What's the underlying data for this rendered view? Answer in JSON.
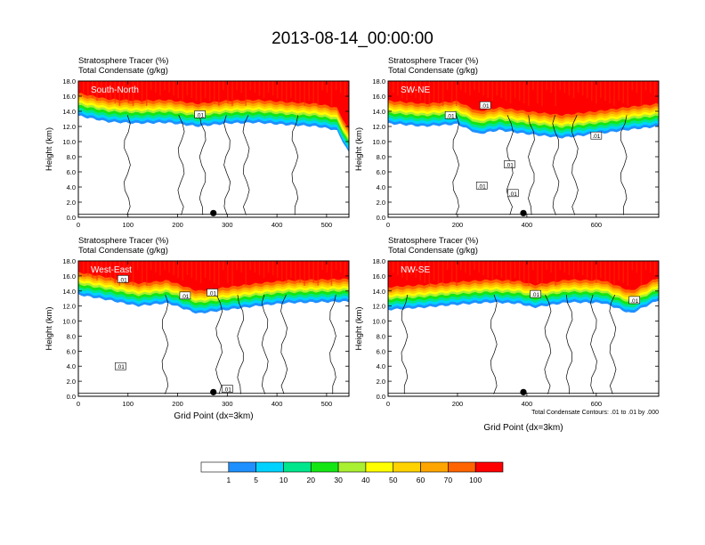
{
  "figure": {
    "title": "2013-08-14_00:00:00",
    "footnote": "Total Condensate Contours: .01 to .01 by .000"
  },
  "chart_data": {
    "type": "heatmap",
    "shared": {
      "header_line1": "Stratosphere Tracer   (%)",
      "header_line2": "Total Condensate   (g/kg)",
      "ylabel": "Height (km)",
      "xlabel": "Grid Point (dx=3km)",
      "ylim": [
        0,
        18
      ],
      "y_ticks": [
        "0.0",
        "2.0",
        "4.0",
        "6.0",
        "8.0",
        "10.0",
        "12.0",
        "14.0",
        "16.0",
        "18.0"
      ],
      "contour_label": ".01"
    },
    "colorbar": {
      "levels": [
        "1",
        "5",
        "10",
        "20",
        "30",
        "40",
        "50",
        "60",
        "70",
        "100"
      ],
      "colors": [
        "#ffffff",
        "#1e90ff",
        "#00d2ff",
        "#00e68c",
        "#14e614",
        "#aaf032",
        "#ffff00",
        "#ffd200",
        "#ffa500",
        "#ff6400",
        "#ff0000"
      ]
    },
    "panels": [
      {
        "name": "South-North",
        "xlim": [
          0,
          545
        ],
        "x_ticks": [
          0,
          100,
          200,
          300,
          400,
          500
        ],
        "marker_x": 272,
        "show_xlabel": false,
        "tracer_base_km": [
          [
            0,
            13.4
          ],
          [
            60,
            12.6
          ],
          [
            120,
            12.4
          ],
          [
            180,
            12.5
          ],
          [
            240,
            12.0
          ],
          [
            300,
            12.4
          ],
          [
            360,
            12.5
          ],
          [
            420,
            12.2
          ],
          [
            480,
            12.0
          ],
          [
            520,
            11.5
          ],
          [
            545,
            8.5
          ]
        ],
        "contour_labels": [
          [
            245,
            13.6
          ]
        ]
      },
      {
        "name": "SW-NE",
        "xlim": [
          0,
          780
        ],
        "x_ticks": [
          0,
          200,
          400,
          600
        ],
        "marker_x": 390,
        "show_xlabel": false,
        "tracer_base_km": [
          [
            0,
            12.4
          ],
          [
            100,
            12.0
          ],
          [
            200,
            12.3
          ],
          [
            260,
            11.0
          ],
          [
            320,
            11.5
          ],
          [
            400,
            11.0
          ],
          [
            500,
            10.5
          ],
          [
            600,
            11.0
          ],
          [
            700,
            11.6
          ],
          [
            780,
            12.0
          ]
        ],
        "contour_labels": [
          [
            180,
            13.5
          ],
          [
            280,
            14.8
          ],
          [
            350,
            7.0
          ],
          [
            270,
            4.2
          ],
          [
            360,
            3.2
          ],
          [
            600,
            10.8
          ]
        ]
      },
      {
        "name": "West-East",
        "xlim": [
          0,
          545
        ],
        "x_ticks": [
          0,
          100,
          200,
          300,
          400,
          500
        ],
        "marker_x": 272,
        "show_xlabel": true,
        "tracer_base_km": [
          [
            0,
            13.5
          ],
          [
            60,
            12.8
          ],
          [
            120,
            12.0
          ],
          [
            180,
            12.4
          ],
          [
            240,
            11.0
          ],
          [
            300,
            11.5
          ],
          [
            360,
            12.0
          ],
          [
            420,
            12.4
          ],
          [
            480,
            12.5
          ],
          [
            545,
            12.6
          ]
        ],
        "contour_labels": [
          [
            90,
            15.6
          ],
          [
            215,
            13.4
          ],
          [
            270,
            13.8
          ],
          [
            85,
            4.0
          ],
          [
            300,
            1.0
          ]
        ]
      },
      {
        "name": "NW-SE",
        "xlim": [
          0,
          780
        ],
        "x_ticks": [
          0,
          200,
          400,
          600
        ],
        "marker_x": 390,
        "show_xlabel": true,
        "tracer_base_km": [
          [
            0,
            11.5
          ],
          [
            100,
            11.8
          ],
          [
            200,
            12.2
          ],
          [
            300,
            12.5
          ],
          [
            380,
            12.3
          ],
          [
            420,
            11.8
          ],
          [
            520,
            12.5
          ],
          [
            620,
            12.4
          ],
          [
            700,
            11.0
          ],
          [
            780,
            12.8
          ]
        ],
        "contour_labels": [
          [
            425,
            13.6
          ],
          [
            710,
            12.8
          ]
        ]
      }
    ]
  }
}
